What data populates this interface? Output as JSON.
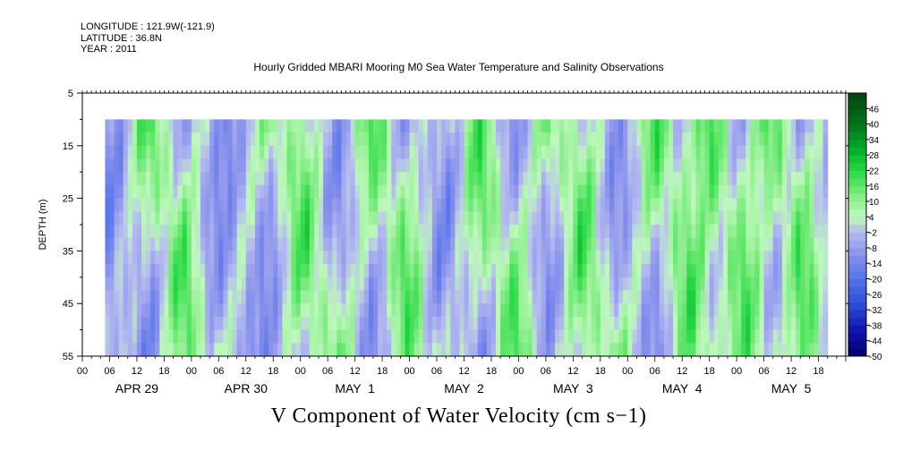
{
  "header": {
    "longitude": "LONGITUDE : 121.9W(-121.9)",
    "latitude": "LATITUDE : 36.8N",
    "year": "YEAR : 2011"
  },
  "chart_data": {
    "type": "heatmap",
    "title": "Hourly Gridded MBARI Mooring M0 Sea Water Temperature and Salinity Observations",
    "xlabel": "V Component of Water Velocity (cm s−1)",
    "ylabel": "DEPTH (m)",
    "y_ticks": [
      5,
      15,
      25,
      35,
      45,
      55
    ],
    "ylim": [
      5,
      55
    ],
    "y_inverted": true,
    "x_hour_ticks": [
      "00",
      "06",
      "12",
      "18",
      "00",
      "06",
      "12",
      "18",
      "00",
      "06",
      "12",
      "18",
      "00",
      "06",
      "12",
      "18",
      "00",
      "06",
      "12",
      "18",
      "00",
      "06",
      "12",
      "18",
      "00",
      "06",
      "12",
      "18"
    ],
    "x_day_labels": [
      "APR 29",
      "APR 30",
      "MAY  1",
      "MAY  2",
      "MAY  3",
      "MAY  4",
      "MAY  5"
    ],
    "x_range_hours": [
      0,
      168
    ],
    "data_start_hour": 5,
    "data_end_hour": 164,
    "data_depth_range": [
      10,
      55
    ],
    "colorbar": {
      "levels": [
        "-50",
        "-44",
        "-38",
        "-32",
        "-26",
        "-20",
        "-14",
        "-8",
        "-2",
        "4",
        "10",
        "16",
        "22",
        "28",
        "34",
        "40",
        "46"
      ],
      "range": [
        -50,
        52
      ]
    },
    "north_flow_pulse_hours": [
      15,
      44,
      64,
      86,
      105,
      126,
      138,
      152
    ]
  }
}
